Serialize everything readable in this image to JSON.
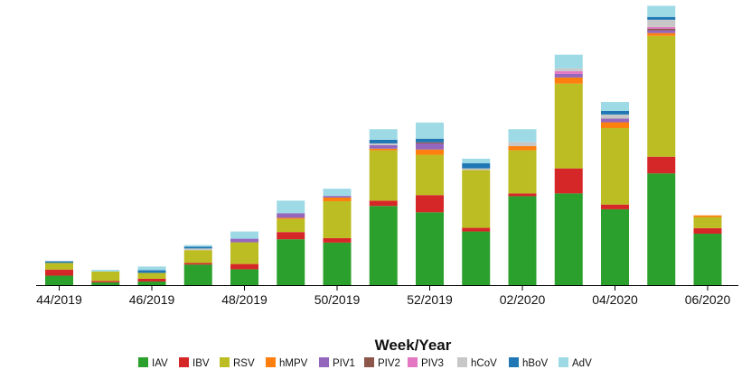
{
  "chart_data": {
    "type": "bar",
    "stacked": true,
    "xlabel": "Week/Year",
    "ylabel": "",
    "ylim": [
      0,
      100
    ],
    "grid": false,
    "legend_position": "bottom",
    "x_tick_labels": [
      "44/2019",
      "46/2019",
      "48/2019",
      "50/2019",
      "52/2019",
      "02/2020",
      "04/2020",
      "06/2020"
    ],
    "categories": [
      "44/2019",
      "45/2019",
      "46/2019",
      "47/2019",
      "48/2019",
      "49/2019",
      "50/2019",
      "51/2019",
      "52/2019",
      "01/2020",
      "02/2020",
      "03/2020",
      "04/2020",
      "05/2020",
      "06/2020"
    ],
    "series": [
      {
        "name": "IAV",
        "color": "#2ca02c",
        "values": [
          3.4,
          1.0,
          1.3,
          7.4,
          5.7,
          16.5,
          15.3,
          28.5,
          26.2,
          19.3,
          32.0,
          33.0,
          27.3,
          40.2,
          18.5
        ]
      },
      {
        "name": "IBV",
        "color": "#d62728",
        "values": [
          2.2,
          0.5,
          1.0,
          0.6,
          1.9,
          2.6,
          1.6,
          1.9,
          6.2,
          1.3,
          1.0,
          9.0,
          1.7,
          6.0,
          2.0
        ]
      },
      {
        "name": "RSV",
        "color": "#bcbd22",
        "values": [
          2.4,
          3.4,
          2.1,
          4.6,
          7.8,
          4.7,
          13.3,
          18.1,
          14.5,
          20.8,
          15.5,
          30.5,
          27.5,
          43.5,
          4.0
        ]
      },
      {
        "name": "hMPV",
        "color": "#ff7f0e",
        "values": [
          0,
          0,
          0,
          0,
          0,
          0.4,
          1.3,
          0.6,
          1.9,
          0,
          1.5,
          2.2,
          2.1,
          1.0,
          0.6
        ]
      },
      {
        "name": "PIV1",
        "color": "#9467bd",
        "values": [
          0,
          0,
          0,
          0,
          1.3,
          1.7,
          0.6,
          1.3,
          2.2,
          0,
          0,
          1.3,
          1.3,
          1.0,
          0
        ]
      },
      {
        "name": "PIV2",
        "color": "#8c564b",
        "values": [
          0,
          0,
          0,
          0,
          0,
          0,
          0,
          0,
          0.4,
          0,
          0,
          0,
          0,
          0.6,
          0
        ]
      },
      {
        "name": "PIV3",
        "color": "#e377c2",
        "values": [
          0,
          0,
          0,
          0,
          0,
          0,
          0,
          0,
          0,
          0,
          0,
          1.0,
          0,
          0.6,
          0
        ]
      },
      {
        "name": "hCoV",
        "color": "#c7c7c7",
        "values": [
          0,
          0,
          0,
          0.6,
          0,
          0,
          0,
          0.6,
          0,
          0.6,
          1.5,
          1.0,
          1.5,
          2.6,
          0
        ]
      },
      {
        "name": "hBoV",
        "color": "#1f77b4",
        "values": [
          0.6,
          0,
          1.0,
          0.6,
          0,
          0,
          0,
          1.3,
          1.3,
          1.9,
          0,
          0,
          1.3,
          1.0,
          0
        ]
      },
      {
        "name": "AdV",
        "color": "#9edae5",
        "values": [
          0,
          0.6,
          1.3,
          0.6,
          2.6,
          4.5,
          2.6,
          3.8,
          5.8,
          1.6,
          4.6,
          4.9,
          3.2,
          4.0,
          0
        ]
      }
    ]
  }
}
